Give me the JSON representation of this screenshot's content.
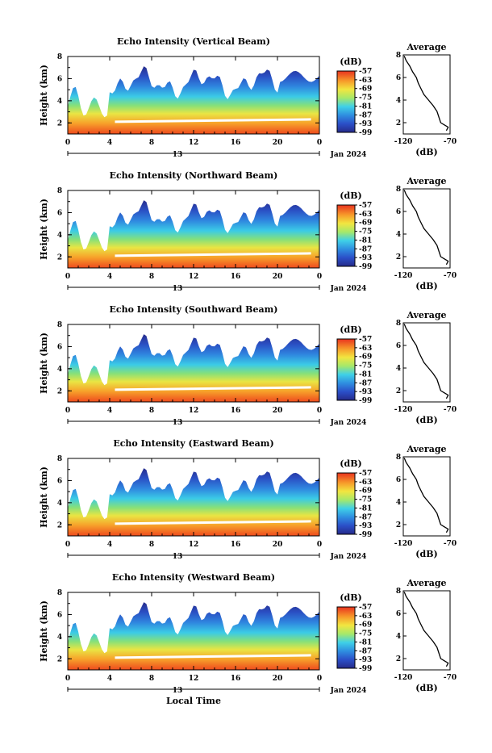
{
  "chart_data": {
    "type": "heatmap",
    "panels": [
      {
        "title": "Echo Intensity (Vertical Beam)"
      },
      {
        "title": "Echo Intensity (Northward Beam)"
      },
      {
        "title": "Echo Intensity (Southward Beam)"
      },
      {
        "title": "Echo Intensity (Eastward Beam)"
      },
      {
        "title": "Echo Intensity (Westward Beam)"
      }
    ],
    "ylabel": "Height (km)",
    "ylim": [
      1,
      8
    ],
    "y_ticks": [
      "2",
      "4",
      "6",
      "8"
    ],
    "xlim": [
      0,
      24
    ],
    "x_ticks": [
      "0",
      "4",
      "8",
      "12",
      "16",
      "20",
      "0"
    ],
    "date_day": "13",
    "date_label": "Jan 2024",
    "xlabel": "Local Time",
    "colorbar": {
      "unit": "(dB)",
      "ticks": [
        "-57",
        "-63",
        "-69",
        "-75",
        "-81",
        "-87",
        "-93",
        "-99"
      ],
      "range": [
        -99,
        -57
      ]
    },
    "profile": {
      "title": "Average",
      "xlabel": "(dB)",
      "x_ticks": [
        "-120",
        "-70"
      ],
      "xlim": [
        -120,
        -70
      ],
      "y_ticks": [
        "2",
        "4",
        "6",
        "8"
      ],
      "ylim": [
        1,
        8
      ],
      "values": [
        {
          "height": 1.3,
          "db": -74
        },
        {
          "height": 1.6,
          "db": -72
        },
        {
          "height": 1.8,
          "db": -76
        },
        {
          "height": 2.0,
          "db": -80
        },
        {
          "height": 2.5,
          "db": -82
        },
        {
          "height": 3.0,
          "db": -84
        },
        {
          "height": 3.5,
          "db": -88
        },
        {
          "height": 4.0,
          "db": -93
        },
        {
          "height": 4.5,
          "db": -98
        },
        {
          "height": 5.0,
          "db": -101
        },
        {
          "height": 5.5,
          "db": -104
        },
        {
          "height": 6.0,
          "db": -106
        },
        {
          "height": 6.5,
          "db": -110
        },
        {
          "height": 7.0,
          "db": -113
        },
        {
          "height": 7.5,
          "db": -117
        },
        {
          "height": 7.9,
          "db": -119
        }
      ]
    }
  }
}
